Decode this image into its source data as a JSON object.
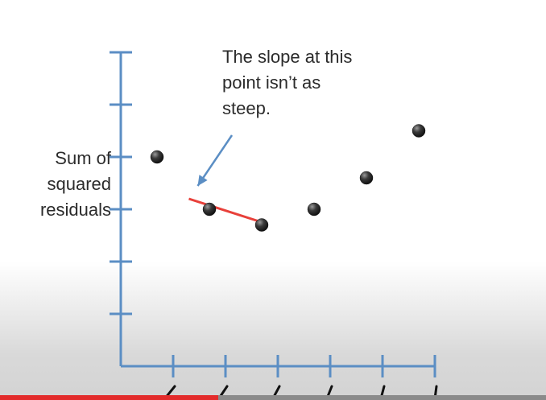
{
  "chart_data": {
    "type": "scatter",
    "title": "",
    "xlabel": "",
    "ylabel": "Sum of squared residuals",
    "x": [
      1,
      2,
      3,
      4,
      5,
      6
    ],
    "y": [
      4.0,
      3.0,
      2.7,
      3.0,
      3.6,
      4.5
    ],
    "xlim": [
      0,
      6
    ],
    "ylim": [
      0,
      6
    ],
    "tangent_line": {
      "x": [
        1.3,
        2.7
      ],
      "y": [
        3.2,
        2.75
      ],
      "color": "#e8403a"
    },
    "annotation": {
      "text": "The slope at this point isn’t as steep.",
      "lines": [
        "The slope at this",
        "point isn’t as",
        "steep."
      ],
      "target_x": 1.5,
      "target_y": 3.2
    },
    "axis_color": "#5b8ec4",
    "point_color": "#222222"
  },
  "video": {
    "progress": 0.4
  }
}
